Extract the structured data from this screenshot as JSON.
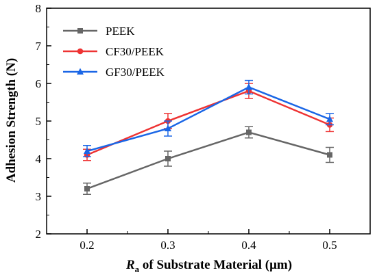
{
  "chart_data": {
    "type": "line",
    "x": [
      0.2,
      0.3,
      0.4,
      0.5
    ],
    "x_ticks": [
      "0.2",
      "0.3",
      "0.4",
      "0.5"
    ],
    "y_ticks": [
      "2",
      "3",
      "4",
      "5",
      "6",
      "7",
      "8"
    ],
    "xlim": [
      0.15,
      0.55
    ],
    "ylim": [
      2,
      8
    ],
    "xlabel_italic": "R",
    "xlabel_sub": "a",
    "xlabel_rest": " of Substrate Material (μm)",
    "ylabel": "Adhesion Strength (N)",
    "grid": false,
    "legend_position": "top-left",
    "series": [
      {
        "name": "PEEK",
        "color": "#666666",
        "marker": "square",
        "values": [
          3.2,
          4.0,
          4.7,
          4.1
        ],
        "errors": [
          0.15,
          0.2,
          0.15,
          0.2
        ]
      },
      {
        "name": "CF30/PEEK",
        "color": "#ee3333",
        "marker": "circle",
        "values": [
          4.1,
          5.0,
          5.8,
          4.9
        ],
        "errors": [
          0.15,
          0.2,
          0.2,
          0.18
        ]
      },
      {
        "name": "GF30/PEEK",
        "color": "#1a66e6",
        "marker": "triangle",
        "values": [
          4.2,
          4.8,
          5.9,
          5.05
        ],
        "errors": [
          0.15,
          0.2,
          0.18,
          0.15
        ]
      }
    ]
  }
}
